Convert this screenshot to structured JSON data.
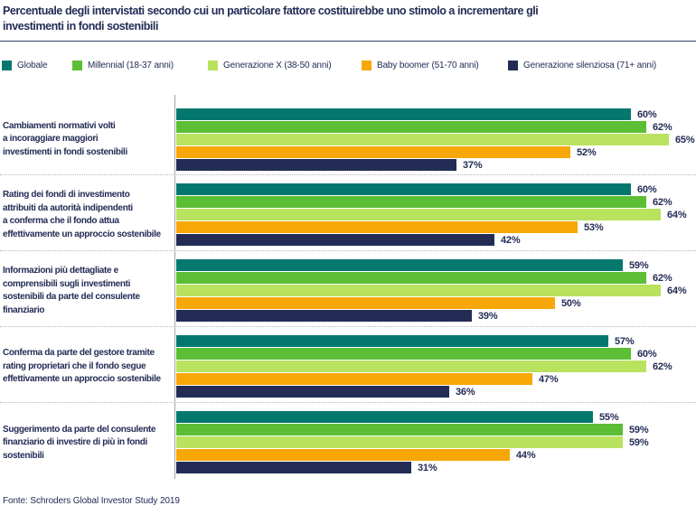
{
  "title": {
    "lines": [
      "Percentuale degli intervistati secondo cui un particolare fattore costituirebbe uno stimolo a incrementare gli",
      "investimenti in fondi sostenibili"
    ]
  },
  "source": "Fonte: Schroders Global Investor Study 2019",
  "chart_data": {
    "type": "bar",
    "orientation": "horizontal",
    "title": "Percentuale degli intervistati secondo cui un particolare fattore costituirebbe uno stimolo a incrementare gli investimenti in fondi sostenibili",
    "legend_position": "top",
    "grid": false,
    "value_suffix": "%",
    "xlim": [
      0,
      68
    ],
    "axis_color": "#A2A4A8",
    "separator_color": "#B4B6B9",
    "text_color": "#232C55",
    "categories": [
      {
        "lines": [
          "Cambiamenti normativi volti",
          "a incoraggiare maggiori",
          "investimenti in fondi sostenibili"
        ]
      },
      {
        "lines": [
          "Rating dei fondi di investimento",
          "attribuiti da autorità indipendenti",
          "a conferma che il fondo attua",
          "effettivamente un approccio sostenibile"
        ]
      },
      {
        "lines": [
          "Informazioni più dettagliate e",
          "comprensibili sugli investimenti",
          "sostenibili da parte del consulente",
          "finanziario"
        ]
      },
      {
        "lines": [
          "Conferma da parte del gestore tramite",
          "rating proprietari che il fondo segue",
          "effettivamente un approccio sostenibile"
        ]
      },
      {
        "lines": [
          "Suggerimento da parte del consulente",
          "finanziario di investire di più in fondi",
          "sostenibili"
        ]
      }
    ],
    "series": [
      {
        "name": "Globale",
        "color": "#04786E",
        "values": [
          60,
          60,
          59,
          57,
          55
        ]
      },
      {
        "name": "Millennial (18-37 anni)",
        "color": "#5BBE34",
        "values": [
          62,
          62,
          62,
          60,
          59
        ]
      },
      {
        "name": "Generazione X (38-50 anni)",
        "color": "#B9E25F",
        "values": [
          65,
          64,
          64,
          62,
          59
        ]
      },
      {
        "name": "Baby boomer (51-70 anni)",
        "color": "#F7A707",
        "values": [
          52,
          53,
          50,
          47,
          44
        ]
      },
      {
        "name": "Generazione silenziosa (71+ anni)",
        "color": "#232C55",
        "values": [
          37,
          42,
          39,
          36,
          31
        ]
      }
    ]
  }
}
